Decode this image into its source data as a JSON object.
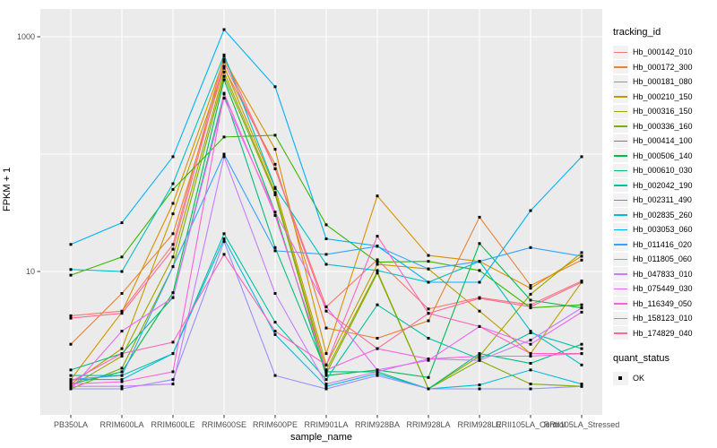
{
  "figure": {
    "background": "#FFFFFF",
    "panel_background": "#EBEBEB",
    "grid_color": "#FFFFFF",
    "tick_color": "#333333",
    "tick_label_color": "#4D4D4D",
    "point_color": "#000000"
  },
  "axes": {
    "x_title": "sample_name",
    "y_title": "FPKM + 1",
    "y_tick_labels": [
      "10",
      "1000"
    ],
    "y_tick_values": [
      10,
      1000
    ]
  },
  "legend": {
    "title": "tracking_id"
  },
  "quant_legend": {
    "title": "quant_status",
    "items": [
      {
        "label": "OK"
      }
    ]
  },
  "chart_data": {
    "type": "line",
    "title": "",
    "xlabel": "sample_name",
    "ylabel": "FPKM + 1",
    "y_scale": "log10",
    "y_ticks": [
      10,
      1000
    ],
    "ylim": [
      0.9,
      1500
    ],
    "grid": true,
    "legend_position": "right",
    "point_shape": "filled-square-black",
    "quant_status_all_points": "OK",
    "categories": [
      "PB350LA",
      "RRIM600LA",
      "RRIM600LE",
      "RRIM600SE",
      "RRIM600PE",
      "RRIM901LA",
      "RRIM928BA",
      "RRIM928LA",
      "RRIM928LE",
      "RRII105LA_Control",
      "RRII105LA_Stressed"
    ],
    "series": [
      {
        "name": "Hb_000142_010",
        "color": "#F8766D",
        "values": [
          4.2,
          4.6,
          17,
          680,
          75,
          5.0,
          12.6,
          4.8,
          6.0,
          5.2,
          8.3
        ]
      },
      {
        "name": "Hb_000172_300",
        "color": "#EA8331",
        "values": [
          2.4,
          6.5,
          21,
          540,
          82,
          3.3,
          2.7,
          3.8,
          29,
          7.6,
          12.5
        ]
      },
      {
        "name": "Hb_000181_080",
        "color": "#D89000",
        "values": [
          1.2,
          4.5,
          38,
          640,
          110,
          2.0,
          44,
          13.7,
          12.2,
          7.2,
          13.5
        ]
      },
      {
        "name": "Hb_000210_150",
        "color": "#C09B00",
        "values": [
          1.1,
          2.2,
          31,
          560,
          51,
          1.6,
          11.5,
          10.5,
          4.6,
          2.0,
          8.1
        ]
      },
      {
        "name": "Hb_000316_150",
        "color": "#A3A500",
        "values": [
          1.05,
          1.9,
          13.3,
          500,
          47,
          1.45,
          10,
          1.0,
          1.9,
          6.4,
          14.5
        ]
      },
      {
        "name": "Hb_000336_160",
        "color": "#7CAE00",
        "values": [
          1.0,
          1.5,
          11,
          460,
          45,
          1.35,
          9.7,
          1.0,
          1.75,
          1.1,
          1.05
        ]
      },
      {
        "name": "Hb_000414_100",
        "color": "#39B600",
        "values": [
          9.3,
          13.3,
          50,
          140,
          145,
          25,
          12,
          12.2,
          10.2,
          4.9,
          5.2
        ]
      },
      {
        "name": "Hb_000506_140",
        "color": "#00BB4E",
        "values": [
          1.1,
          1.4,
          6.6,
          430,
          32,
          1.3,
          1.45,
          1.25,
          17.3,
          5.7,
          4.9
        ]
      },
      {
        "name": "Hb_000610_030",
        "color": "#00BF7D",
        "values": [
          1.45,
          2.0,
          6.0,
          325,
          16,
          1.4,
          1.4,
          1.0,
          2.0,
          1.65,
          2.4
        ]
      },
      {
        "name": "Hb_002042_190",
        "color": "#00C1A3",
        "values": [
          1.3,
          1.3,
          2.0,
          21,
          3.7,
          1.2,
          5.2,
          2.7,
          1.8,
          3.0,
          2.2
        ]
      },
      {
        "name": "Hb_002311_490",
        "color": "#00BFC4",
        "values": [
          10.4,
          10.0,
          56,
          700,
          52,
          11.5,
          10.2,
          8.1,
          12.2,
          3.1,
          1.6
        ]
      },
      {
        "name": "Hb_002835_260",
        "color": "#00BBDA",
        "values": [
          1.2,
          1.2,
          2.0,
          19,
          2.9,
          1.05,
          1.35,
          1.0,
          1.08,
          1.45,
          1.1
        ]
      },
      {
        "name": "Hb_003053_060",
        "color": "#00B0F6",
        "values": [
          17,
          26,
          95,
          1150,
          375,
          19,
          16.5,
          8.1,
          8.1,
          33,
          95
        ]
      },
      {
        "name": "Hb_011416_020",
        "color": "#35A2FF",
        "values": [
          1.2,
          1.3,
          11,
          100,
          15,
          14,
          16.4,
          10.5,
          12.2,
          16,
          13.5
        ]
      },
      {
        "name": "Hb_011805_060",
        "color": "#9590FF",
        "values": [
          1.0,
          1.0,
          1.2,
          18,
          1.3,
          1.0,
          1.3,
          1.0,
          1.0,
          1.0,
          1.05
        ]
      },
      {
        "name": "Hb_047833_010",
        "color": "#C77CFF",
        "values": [
          1.05,
          1.05,
          1.1,
          95,
          6.5,
          1.1,
          1.4,
          1.8,
          1.75,
          2.6,
          4.9
        ]
      },
      {
        "name": "Hb_075449_030",
        "color": "#E76BF3",
        "values": [
          1.0,
          3.1,
          6.0,
          300,
          32,
          5.0,
          1.45,
          1.75,
          3.4,
          2.4,
          4.5
        ]
      },
      {
        "name": "Hb_116349_050",
        "color": "#FA62DB",
        "values": [
          1.1,
          1.15,
          1.4,
          330,
          30,
          1.45,
          2.2,
          1.8,
          1.9,
          1.9,
          2.0
        ]
      },
      {
        "name": "Hb_158123_010",
        "color": "#FF62BC",
        "values": [
          1.15,
          2.0,
          2.5,
          14,
          3.1,
          1.6,
          20,
          4.4,
          3.4,
          2.0,
          2.0
        ]
      },
      {
        "name": "Hb_174829_040",
        "color": "#FF6A98",
        "values": [
          4.0,
          4.4,
          15.5,
          610,
          75,
          4.6,
          2.2,
          4.4,
          5.9,
          5.0,
          8.1
        ]
      }
    ]
  }
}
